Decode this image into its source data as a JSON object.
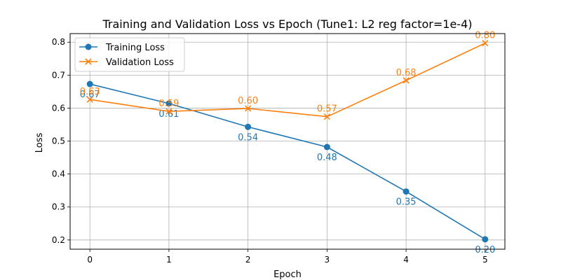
{
  "chart_data": {
    "type": "line",
    "title": "Training and Validation Loss vs Epoch (Tune1: L2 reg factor=1e-4)",
    "xlabel": "Epoch",
    "ylabel": "Loss",
    "x": [
      0,
      1,
      2,
      3,
      4,
      5
    ],
    "xlim": [
      -0.25,
      5.25
    ],
    "ylim": [
      0.172,
      0.826
    ],
    "xticks": [
      "0",
      "1",
      "2",
      "3",
      "4",
      "5"
    ],
    "yticks": [
      "0.2",
      "0.3",
      "0.4",
      "0.5",
      "0.6",
      "0.7",
      "0.8"
    ],
    "grid": true,
    "legend_position": "top-left",
    "series": [
      {
        "name": "Training Loss",
        "color": "#1f77b4",
        "marker": "circle",
        "values": [
          0.673,
          0.614,
          0.543,
          0.482,
          0.347,
          0.202
        ],
        "labels": [
          "0.67",
          "0.61",
          "0.54",
          "0.48",
          "0.35",
          "0.20"
        ]
      },
      {
        "name": "Validation Loss",
        "color": "#ff7f0e",
        "marker": "x",
        "values": [
          0.626,
          0.59,
          0.599,
          0.574,
          0.684,
          0.797
        ],
        "labels": [
          "0.63",
          "0.59",
          "0.60",
          "0.57",
          "0.68",
          "0.80"
        ]
      }
    ]
  }
}
